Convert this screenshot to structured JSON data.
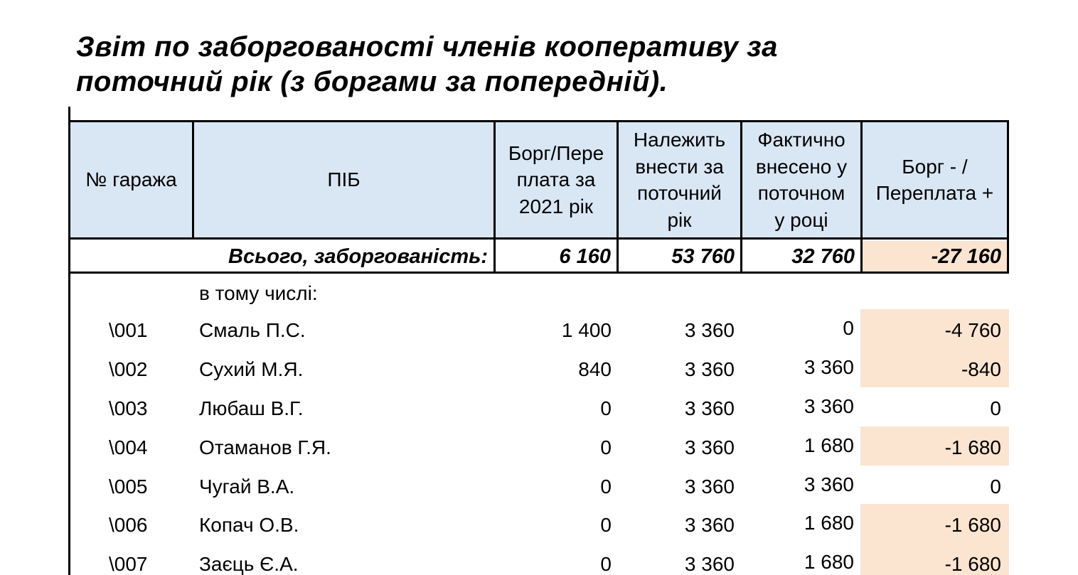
{
  "title_line1": "Звіт по заборгованості членів кооперативу за",
  "title_line2": "поточний рік (з боргами за попередній).",
  "headers": {
    "garage": "№ гаража",
    "name": "ПІБ",
    "prev": [
      "Борг/Пере",
      "плата за",
      "2021 рік"
    ],
    "due": [
      "Належить",
      "внести за",
      "поточний",
      "рік"
    ],
    "paid": [
      "Фактично",
      "внесено у",
      "поточном",
      "у році"
    ],
    "balance": [
      "Борг - /",
      "Переплата +"
    ]
  },
  "totals": {
    "label": "Всього, заборгованість:",
    "prev": "6 160",
    "due": "53 760",
    "paid": "32 760",
    "balance": "-27 160"
  },
  "note": "в тому числі:",
  "rows": [
    {
      "garage": "\\001",
      "name": "Смаль П.С.",
      "prev": "1 400",
      "due": "3 360",
      "paid": "0",
      "balance": "-4 760"
    },
    {
      "garage": "\\002",
      "name": "Сухий М.Я.",
      "prev": "840",
      "due": "3 360",
      "paid": "3 360",
      "balance": "-840"
    },
    {
      "garage": "\\003",
      "name": "Любаш В.Г.",
      "prev": "0",
      "due": "3 360",
      "paid": "3 360",
      "balance": "0"
    },
    {
      "garage": "\\004",
      "name": "Отаманов Г.Я.",
      "prev": "0",
      "due": "3 360",
      "paid": "1 680",
      "balance": "-1 680"
    },
    {
      "garage": "\\005",
      "name": "Чугай В.А.",
      "prev": "0",
      "due": "3 360",
      "paid": "3 360",
      "balance": "0"
    },
    {
      "garage": "\\006",
      "name": "Копач О.В.",
      "prev": "0",
      "due": "3 360",
      "paid": "1 680",
      "balance": "-1 680"
    },
    {
      "garage": "\\007",
      "name": "Заєць Є.А.",
      "prev": "0",
      "due": "3 360",
      "paid": "1 680",
      "balance": "-1 680"
    }
  ],
  "colors": {
    "header_bg": "#d9e6f4",
    "debt_bg": "#fbe4d0"
  }
}
